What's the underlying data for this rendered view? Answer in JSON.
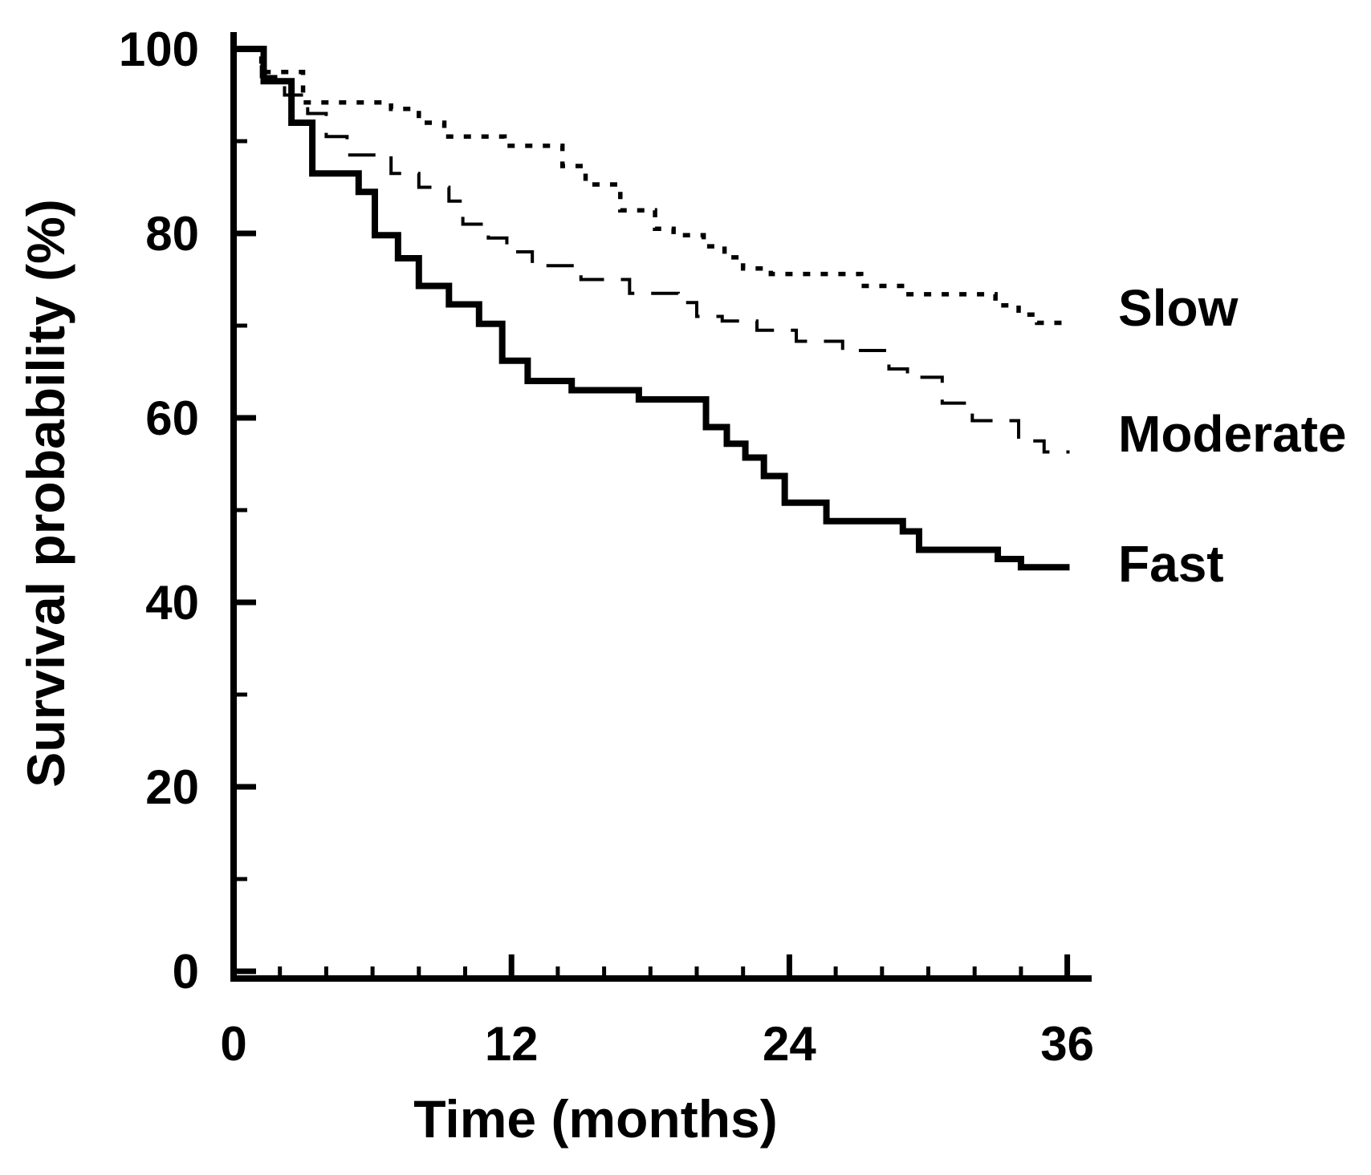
{
  "figure": {
    "background_color": "#ffffff",
    "ink_color": "#000000"
  },
  "chart_data": {
    "type": "line",
    "variant": "kaplan_meier_step_plot",
    "title": "",
    "xlabel": "Time (months)",
    "ylabel": "Survival probability (%)",
    "xlim": [
      0,
      36
    ],
    "ylim": [
      0,
      100
    ],
    "grid": false,
    "legend_position": "right-of-plot",
    "x_major_ticks": [
      0,
      12,
      24,
      36
    ],
    "x_major_tick_labels": [
      "0",
      "12",
      "24",
      "36"
    ],
    "x_minor_ticks": [
      2,
      4,
      6,
      8,
      10,
      14,
      16,
      18,
      20,
      22,
      26,
      28,
      30,
      32,
      34
    ],
    "y_major_ticks": [
      100,
      80,
      60,
      40,
      20,
      0
    ],
    "y_major_tick_labels": [
      "100",
      "80",
      "60",
      "40",
      "20",
      "0"
    ],
    "y_minor_ticks": [
      90,
      70,
      50,
      30,
      10
    ],
    "series": [
      {
        "name": "slow",
        "label": "Slow",
        "line_style": "dotted",
        "color": "#000000",
        "end_month": 36,
        "points": [
          [
            0,
            100
          ],
          [
            1.2,
            97.5
          ],
          [
            3,
            94.2
          ],
          [
            6.8,
            93.5
          ],
          [
            8,
            92
          ],
          [
            9.1,
            90.5
          ],
          [
            11.7,
            89.5
          ],
          [
            14.2,
            87.3
          ],
          [
            15.2,
            85.3
          ],
          [
            16.7,
            82.5
          ],
          [
            18.2,
            80.5
          ],
          [
            19,
            79.8
          ],
          [
            20.3,
            78.6
          ],
          [
            21.2,
            77.4
          ],
          [
            22,
            76.2
          ],
          [
            23.2,
            75.6
          ],
          [
            27.1,
            74.3
          ],
          [
            29,
            73.4
          ],
          [
            32.9,
            72.2
          ],
          [
            33.9,
            71.2
          ],
          [
            34.7,
            70.3
          ]
        ]
      },
      {
        "name": "moderate",
        "label": "Moderate",
        "line_style": "dashed",
        "color": "#000000",
        "end_month": 36.1,
        "points": [
          [
            0,
            100
          ],
          [
            1.2,
            97
          ],
          [
            2.2,
            95
          ],
          [
            3.2,
            93
          ],
          [
            4,
            90.5
          ],
          [
            4.9,
            88.5
          ],
          [
            6.8,
            86.5
          ],
          [
            8,
            85
          ],
          [
            9.3,
            83.5
          ],
          [
            9.9,
            81
          ],
          [
            11,
            79.5
          ],
          [
            11.8,
            78
          ],
          [
            12.9,
            76.5
          ],
          [
            15,
            75
          ],
          [
            17.1,
            73.5
          ],
          [
            19.2,
            72.5
          ],
          [
            20,
            71
          ],
          [
            21.1,
            70.5
          ],
          [
            22.6,
            69.5
          ],
          [
            24.3,
            68.3
          ],
          [
            26.3,
            67.3
          ],
          [
            28.3,
            65.3
          ],
          [
            29.1,
            64.4
          ],
          [
            30.6,
            61.6
          ],
          [
            31.9,
            59.7
          ],
          [
            33.9,
            57.5
          ],
          [
            35,
            56.3
          ]
        ]
      },
      {
        "name": "fast",
        "label": "Fast",
        "line_style": "solid",
        "color": "#000000",
        "end_month": 36.1,
        "points": [
          [
            0,
            100
          ],
          [
            1.3,
            96.5
          ],
          [
            2.5,
            92
          ],
          [
            3.4,
            86.5
          ],
          [
            5.4,
            84.5
          ],
          [
            6.1,
            79.8
          ],
          [
            7.1,
            77.3
          ],
          [
            8,
            74.3
          ],
          [
            9.3,
            72.3
          ],
          [
            10.6,
            70.2
          ],
          [
            11.6,
            66.2
          ],
          [
            12.7,
            64
          ],
          [
            14.6,
            63
          ],
          [
            17.5,
            62
          ],
          [
            20.4,
            59
          ],
          [
            21.3,
            57.2
          ],
          [
            22.1,
            55.7
          ],
          [
            22.9,
            53.7
          ],
          [
            23.8,
            50.8
          ],
          [
            25.6,
            48.8
          ],
          [
            28.9,
            47.7
          ],
          [
            29.6,
            45.7
          ],
          [
            33,
            44.7
          ],
          [
            34,
            43.8
          ]
        ]
      }
    ]
  }
}
